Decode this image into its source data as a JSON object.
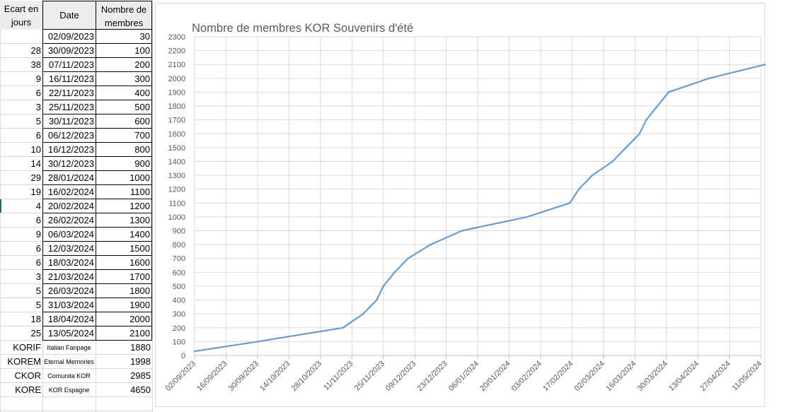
{
  "table": {
    "headers": {
      "ecart": "Ecart en jours",
      "date": "Date",
      "membres": "Nombre de membres"
    },
    "rows": [
      {
        "ecart": "",
        "date": "02/09/2023",
        "membres": "30"
      },
      {
        "ecart": "28",
        "date": "30/09/2023",
        "membres": "100"
      },
      {
        "ecart": "38",
        "date": "07/11/2023",
        "membres": "200"
      },
      {
        "ecart": "9",
        "date": "16/11/2023",
        "membres": "300"
      },
      {
        "ecart": "6",
        "date": "22/11/2023",
        "membres": "400"
      },
      {
        "ecart": "3",
        "date": "25/11/2023",
        "membres": "500"
      },
      {
        "ecart": "5",
        "date": "30/11/2023",
        "membres": "600"
      },
      {
        "ecart": "6",
        "date": "06/12/2023",
        "membres": "700"
      },
      {
        "ecart": "10",
        "date": "16/12/2023",
        "membres": "800"
      },
      {
        "ecart": "14",
        "date": "30/12/2023",
        "membres": "900"
      },
      {
        "ecart": "29",
        "date": "28/01/2024",
        "membres": "1000"
      },
      {
        "ecart": "19",
        "date": "16/02/2024",
        "membres": "1100"
      },
      {
        "ecart": "4",
        "date": "20/02/2024",
        "membres": "1200"
      },
      {
        "ecart": "6",
        "date": "26/02/2024",
        "membres": "1300"
      },
      {
        "ecart": "9",
        "date": "06/03/2024",
        "membres": "1400"
      },
      {
        "ecart": "6",
        "date": "12/03/2024",
        "membres": "1500"
      },
      {
        "ecart": "6",
        "date": "18/03/2024",
        "membres": "1600"
      },
      {
        "ecart": "3",
        "date": "21/03/2024",
        "membres": "1700"
      },
      {
        "ecart": "5",
        "date": "26/03/2024",
        "membres": "1800"
      },
      {
        "ecart": "5",
        "date": "31/03/2024",
        "membres": "1900"
      },
      {
        "ecart": "18",
        "date": "18/04/2024",
        "membres": "2000"
      },
      {
        "ecart": "25",
        "date": "13/05/2024",
        "membres": "2100"
      }
    ],
    "extra": [
      {
        "code": "KORIF",
        "name": "Italian Fanpage",
        "value": "1880"
      },
      {
        "code": "KOREM",
        "name": "Eternal Memories",
        "value": "1998"
      },
      {
        "code": "CKOR",
        "name": "Comunita KOR",
        "value": "2985"
      },
      {
        "code": "KORE",
        "name": "KOR Espagne",
        "value": "4650"
      }
    ]
  },
  "chart_data": {
    "type": "line",
    "title": "Nombre de membres KOR Souvenirs d'été",
    "x": [
      "02/09/2023",
      "30/09/2023",
      "07/11/2023",
      "16/11/2023",
      "22/11/2023",
      "25/11/2023",
      "30/11/2023",
      "06/12/2023",
      "16/12/2023",
      "30/12/2023",
      "28/01/2024",
      "16/02/2024",
      "20/02/2024",
      "26/02/2024",
      "06/03/2024",
      "12/03/2024",
      "18/03/2024",
      "21/03/2024",
      "26/03/2024",
      "31/03/2024",
      "18/04/2024",
      "13/05/2024"
    ],
    "values": [
      30,
      100,
      200,
      300,
      400,
      500,
      600,
      700,
      800,
      900,
      1000,
      1100,
      1200,
      1300,
      1400,
      1500,
      1600,
      1700,
      1800,
      1900,
      2000,
      2100
    ],
    "x_ticks": [
      "02/09/2023",
      "16/09/2023",
      "30/09/2023",
      "14/10/2023",
      "28/10/2023",
      "11/11/2023",
      "25/11/2023",
      "09/12/2023",
      "23/12/2023",
      "06/01/2024",
      "20/01/2024",
      "03/02/2024",
      "17/02/2024",
      "02/03/2024",
      "16/03/2024",
      "30/03/2024",
      "13/04/2024",
      "27/04/2024",
      "11/05/2024"
    ],
    "xlim": [
      "02/09/2023",
      "13/05/2024"
    ],
    "ylim": [
      0,
      2300
    ],
    "y_step": 100,
    "grid": true,
    "line_color": "#6a9ccb",
    "grid_color": "#d9d9d9"
  }
}
